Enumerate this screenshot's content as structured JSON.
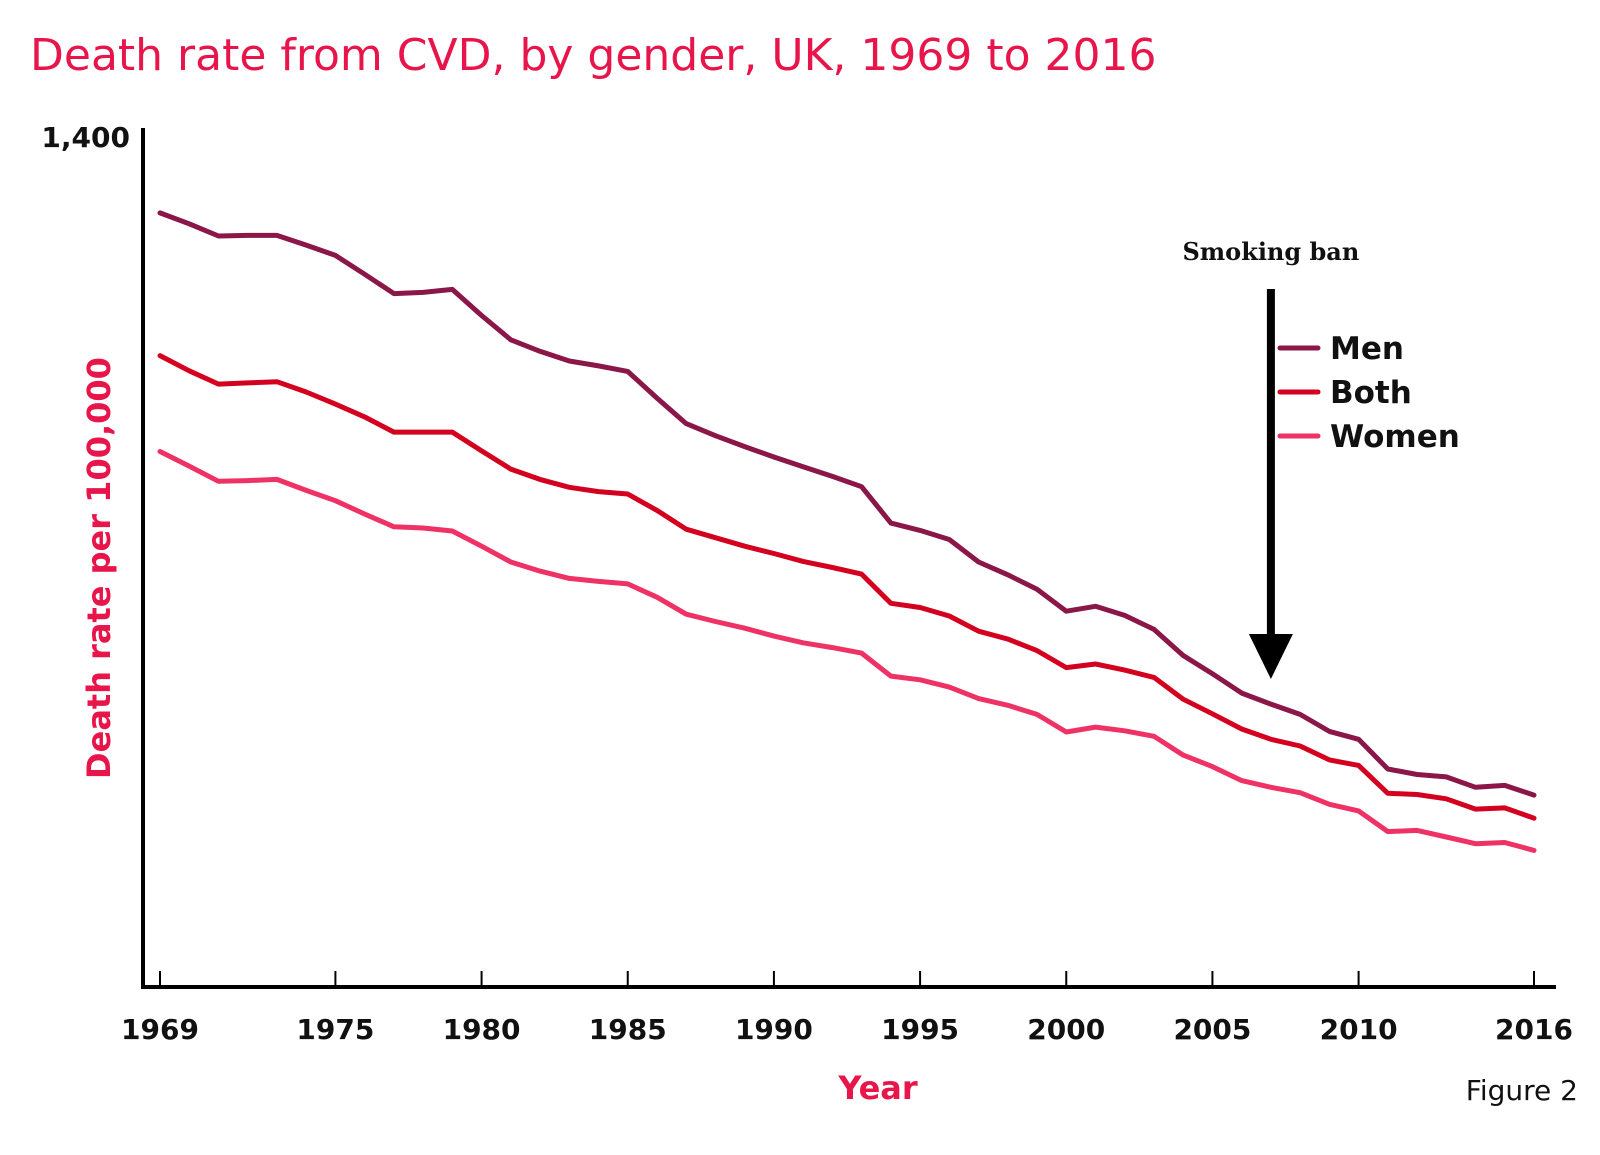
{
  "colors": {
    "title": "#e8154b",
    "axis": "#000000",
    "text": "#111111",
    "men": "#8a1747",
    "both": "#d4001f",
    "women": "#ee3265"
  },
  "figure_label": "Figure 2",
  "chart_data": {
    "type": "line",
    "title": "Death rate from CVD, by gender, UK, 1969 to 2016",
    "xlabel": "Year",
    "ylabel": "Death rate per 100,000",
    "xlim": [
      1969,
      2016
    ],
    "ylim": [
      0,
      1400
    ],
    "y_ticks": [
      1400
    ],
    "y_tick_labels": [
      "1,400"
    ],
    "x_ticks": [
      1969,
      1975,
      1980,
      1985,
      1990,
      1995,
      2000,
      2005,
      2010,
      2016
    ],
    "x_minor_ticks": [
      1969,
      1975,
      1980,
      1985,
      1990,
      1995,
      2000,
      2005,
      2010,
      2016
    ],
    "x": [
      1969,
      1970,
      1971,
      1972,
      1973,
      1974,
      1975,
      1976,
      1977,
      1978,
      1979,
      1980,
      1981,
      1982,
      1983,
      1984,
      1985,
      1986,
      1987,
      1988,
      1989,
      1990,
      1991,
      1992,
      1993,
      1994,
      1995,
      1996,
      1997,
      1998,
      1999,
      2000,
      2001,
      2002,
      2003,
      2004,
      2005,
      2006,
      2007,
      2008,
      2009,
      2010,
      2011,
      2012,
      2013,
      2014,
      2015,
      2016
    ],
    "series": [
      {
        "name": "Men",
        "color_key": "men",
        "values": [
          1275,
          1257,
          1237,
          1238,
          1238,
          1222,
          1205,
          1174,
          1142,
          1144,
          1149,
          1106,
          1066,
          1047,
          1031,
          1023,
          1014,
          970,
          928,
          908,
          890,
          873,
          857,
          841,
          824,
          764,
          752,
          737,
          700,
          679,
          655,
          619,
          627,
          612,
          589,
          546,
          516,
          484,
          466,
          449,
          421,
          408,
          359,
          350,
          346,
          329,
          332,
          316
        ]
      },
      {
        "name": "Both",
        "color_key": "both",
        "values": [
          1040,
          1015,
          993,
          995,
          997,
          980,
          960,
          939,
          914,
          914,
          914,
          883,
          853,
          836,
          823,
          816,
          812,
          785,
          754,
          740,
          726,
          714,
          701,
          691,
          680,
          632,
          625,
          611,
          586,
          573,
          554,
          526,
          532,
          522,
          510,
          474,
          450,
          425,
          408,
          397,
          374,
          365,
          319,
          317,
          310,
          293,
          295,
          278
        ]
      },
      {
        "name": "Women",
        "color_key": "women",
        "values": [
          882,
          858,
          833,
          834,
          836,
          818,
          801,
          779,
          758,
          756,
          751,
          726,
          700,
          685,
          673,
          668,
          664,
          642,
          614,
          602,
          591,
          578,
          567,
          559,
          550,
          512,
          506,
          494,
          475,
          464,
          449,
          420,
          428,
          422,
          413,
          382,
          363,
          340,
          329,
          320,
          301,
          290,
          256,
          258,
          247,
          236,
          238,
          225
        ]
      }
    ],
    "legend": {
      "position": "center-right",
      "entries": [
        "Men",
        "Both",
        "Women"
      ]
    },
    "annotation": {
      "text": "Smoking ban",
      "x": 2007,
      "arrow": "down"
    },
    "grid": false
  }
}
